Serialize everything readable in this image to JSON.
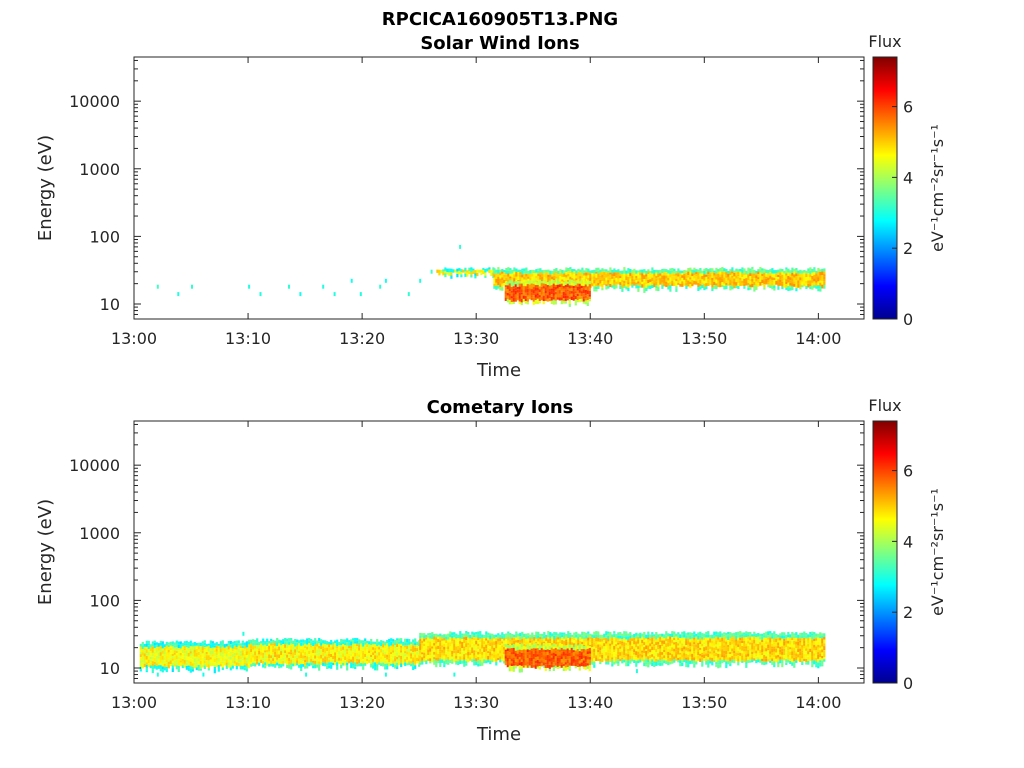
{
  "figure_title": "RPCICA160905T13.PNG",
  "colorbar_label": "Flux",
  "colorbar_unit": "eV⁻¹cm⁻²sr⁻¹s⁻¹",
  "colormap": [
    "#00008f",
    "#0000ff",
    "#0080ff",
    "#00ffff",
    "#80ff80",
    "#ffff00",
    "#ff8000",
    "#ff0000",
    "#800000"
  ],
  "chart_data": [
    {
      "type": "heatmap",
      "title": "Solar Wind Ions",
      "xlabel": "Time",
      "ylabel": "Energy (eV)",
      "x_ticks": [
        "13:00",
        "13:10",
        "13:20",
        "13:30",
        "13:40",
        "13:50",
        "14:00"
      ],
      "x_range_minutes": [
        0,
        64
      ],
      "y_scale": "log",
      "y_ticks": [
        "10",
        "100",
        "1000",
        "10000"
      ],
      "y_range": [
        6,
        45000
      ],
      "colorbar": {
        "label": "Flux",
        "range": [
          0,
          7.4
        ],
        "ticks": [
          "0",
          "2",
          "4",
          "6"
        ]
      },
      "bands": [
        {
          "t_start": 26.5,
          "t_end": 31.5,
          "e_low": 28,
          "e_high": 33,
          "flux": 4.6
        },
        {
          "t_start": 31.5,
          "t_end": 60.5,
          "e_low": 18,
          "e_high": 33,
          "flux": 5.0
        },
        {
          "t_start": 32.5,
          "t_end": 40.0,
          "e_low": 11,
          "e_high": 22,
          "flux": 5.8
        }
      ],
      "sparse_points": [
        {
          "t": 2.0,
          "e": 18,
          "flux": 3.2
        },
        {
          "t": 3.8,
          "e": 14,
          "flux": 3.0
        },
        {
          "t": 5.0,
          "e": 18,
          "flux": 3.1
        },
        {
          "t": 10.0,
          "e": 18,
          "flux": 3.0
        },
        {
          "t": 11.0,
          "e": 14,
          "flux": 3.0
        },
        {
          "t": 13.5,
          "e": 18,
          "flux": 3.1
        },
        {
          "t": 14.5,
          "e": 14,
          "flux": 2.9
        },
        {
          "t": 16.5,
          "e": 18,
          "flux": 3.0
        },
        {
          "t": 17.5,
          "e": 14,
          "flux": 3.0
        },
        {
          "t": 19.0,
          "e": 22,
          "flux": 2.9
        },
        {
          "t": 19.8,
          "e": 14,
          "flux": 3.0
        },
        {
          "t": 21.5,
          "e": 18,
          "flux": 3.1
        },
        {
          "t": 22.0,
          "e": 22,
          "flux": 2.9
        },
        {
          "t": 24.0,
          "e": 14,
          "flux": 3.1
        },
        {
          "t": 25.0,
          "e": 22,
          "flux": 3.0
        },
        {
          "t": 26.0,
          "e": 30,
          "flux": 3.2
        },
        {
          "t": 28.5,
          "e": 70,
          "flux": 3.1
        }
      ]
    },
    {
      "type": "heatmap",
      "title": "Cometary Ions",
      "xlabel": "Time",
      "ylabel": "Energy (eV)",
      "x_ticks": [
        "13:00",
        "13:10",
        "13:20",
        "13:30",
        "13:40",
        "13:50",
        "14:00"
      ],
      "x_range_minutes": [
        0,
        64
      ],
      "y_scale": "log",
      "y_ticks": [
        "10",
        "100",
        "1000",
        "10000"
      ],
      "y_range": [
        6,
        45000
      ],
      "colorbar": {
        "label": "Flux",
        "range": [
          0,
          7.4
        ],
        "ticks": [
          "0",
          "2",
          "4",
          "6"
        ]
      },
      "bands": [
        {
          "t_start": 0.5,
          "t_end": 10.0,
          "e_low": 10,
          "e_high": 24,
          "flux": 4.6
        },
        {
          "t_start": 10.0,
          "t_end": 25.0,
          "e_low": 11,
          "e_high": 26,
          "flux": 4.7
        },
        {
          "t_start": 25.0,
          "t_end": 60.5,
          "e_low": 12,
          "e_high": 33,
          "flux": 4.9
        },
        {
          "t_start": 32.5,
          "t_end": 40.0,
          "e_low": 10,
          "e_high": 22,
          "flux": 5.8
        }
      ],
      "sparse_points": [
        {
          "t": 9.5,
          "e": 32,
          "flux": 3.0
        },
        {
          "t": 2.0,
          "e": 8,
          "flux": 3.0
        },
        {
          "t": 6.0,
          "e": 8,
          "flux": 2.9
        },
        {
          "t": 15.0,
          "e": 8,
          "flux": 3.0
        },
        {
          "t": 22.0,
          "e": 8,
          "flux": 3.0
        },
        {
          "t": 28.0,
          "e": 8,
          "flux": 3.0
        },
        {
          "t": 44.0,
          "e": 9,
          "flux": 3.0
        }
      ]
    }
  ]
}
